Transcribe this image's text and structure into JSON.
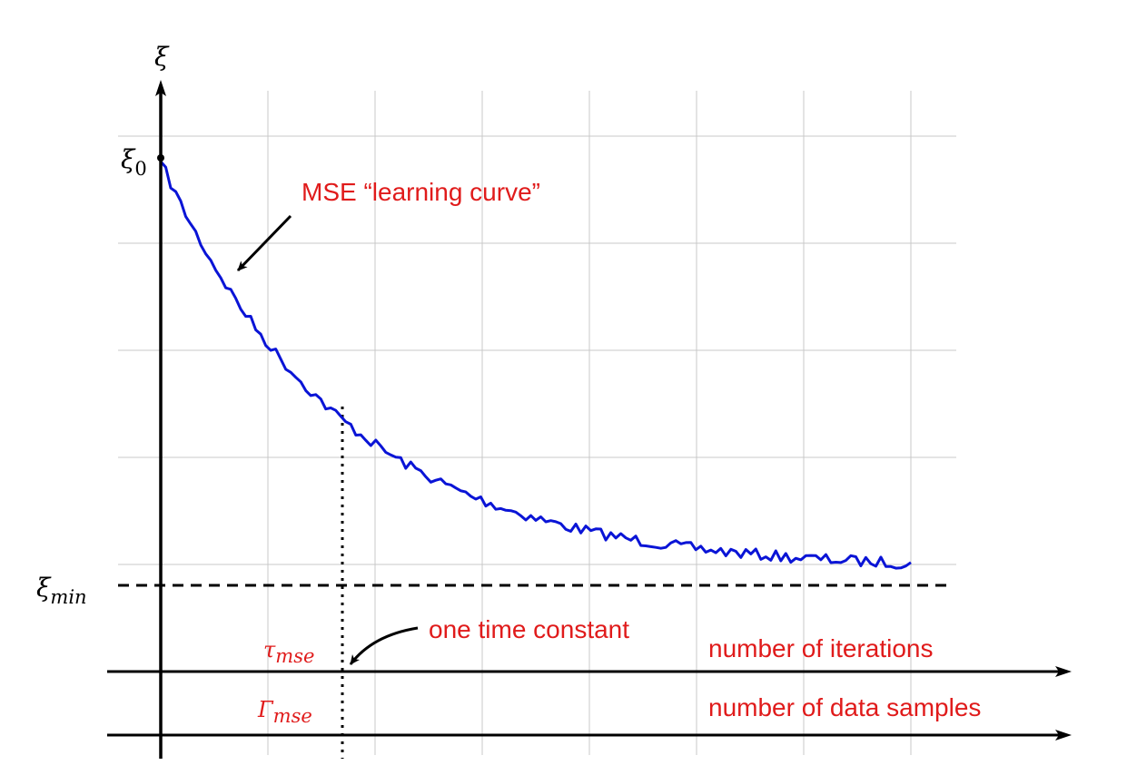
{
  "figure": {
    "y_axis_label": "ξ",
    "xi0_main": "ξ",
    "xi0_sub": "0",
    "ximin_main": "ξ",
    "ximin_sub": "min",
    "curve_label": "MSE “learning curve”",
    "time_constant_label": "one time constant",
    "tau_main": "τ",
    "tau_sub": "mse",
    "gamma_main": "Γ",
    "gamma_sub": "mse",
    "iterations_label": "number of iterations",
    "samples_label": "number of data samples",
    "colors": {
      "curve": "#0a14d6",
      "annotation": "#e01b1b",
      "axis": "#000000",
      "grid": "#c8c8c8"
    }
  }
}
